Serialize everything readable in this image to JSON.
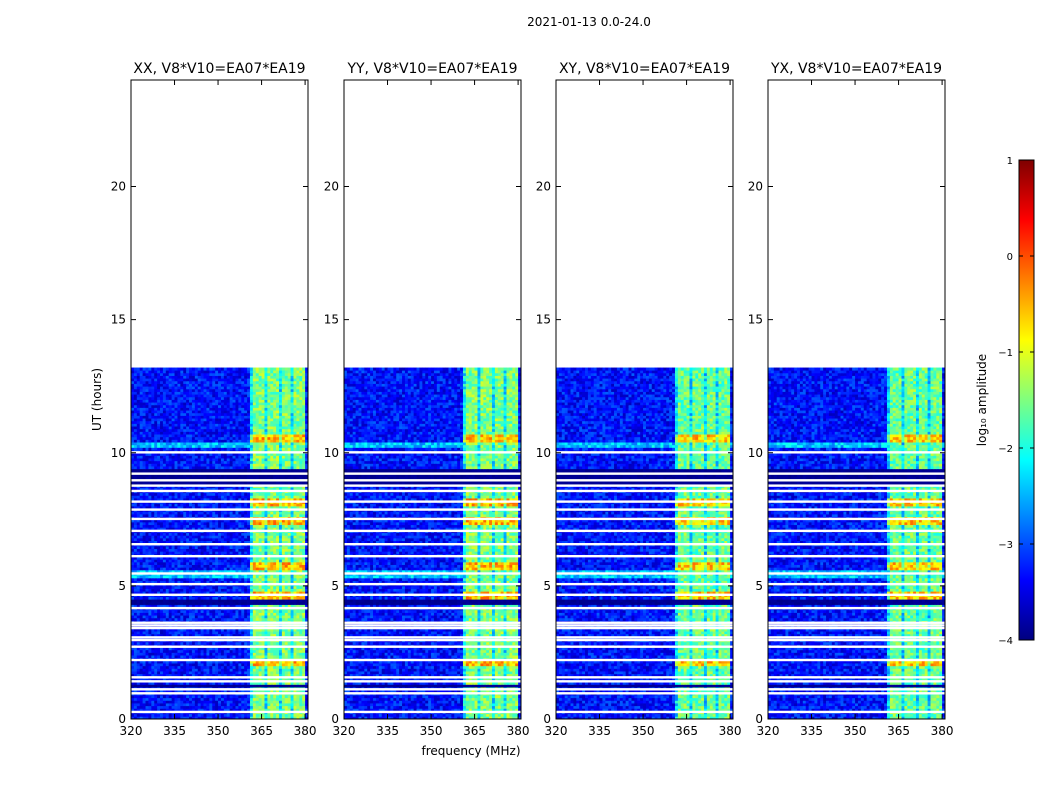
{
  "figure_title": "2021-01-13 0.0-24.0",
  "colorbar": {
    "label": "log₁₀ amplitude",
    "range": [
      -4,
      1
    ],
    "ticks": [
      "1",
      "0",
      "−1",
      "−2",
      "−3",
      "−4"
    ],
    "tick_values": [
      1,
      0,
      -1,
      -2,
      -3,
      -4
    ],
    "colormap": "jet",
    "colors": [
      "#00007f",
      "#0000ff",
      "#007fff",
      "#00ffff",
      "#7fff7f",
      "#ffff00",
      "#ff7f00",
      "#ff0000",
      "#7f0000"
    ]
  },
  "chart_data": [
    {
      "type": "heatmap",
      "title": "XX, V8*V10=EA07*EA19",
      "xlabel": "",
      "ylabel": "UT (hours)",
      "xlim": [
        320,
        381
      ],
      "ylim": [
        0,
        24
      ],
      "xticks": [
        320,
        335,
        350,
        365,
        380
      ],
      "yticks": [
        0,
        5,
        10,
        15,
        20
      ],
      "data_time_range_hours": [
        0.0,
        13.2
      ],
      "rfi_band_mhz": [
        361,
        380
      ],
      "background_log10_amplitude": -3.3,
      "rfi_band_log10_amplitude": -1.5
    },
    {
      "type": "heatmap",
      "title": "YY, V8*V10=EA07*EA19",
      "xlabel": "frequency (MHz)",
      "ylabel": "",
      "xlim": [
        320,
        381
      ],
      "ylim": [
        0,
        24
      ],
      "xticks": [
        320,
        335,
        350,
        365,
        380
      ],
      "yticks": [
        0,
        5,
        10,
        15,
        20
      ],
      "data_time_range_hours": [
        0.0,
        13.2
      ],
      "rfi_band_mhz": [
        361,
        380
      ],
      "background_log10_amplitude": -3.3,
      "rfi_band_log10_amplitude": -1.5
    },
    {
      "type": "heatmap",
      "title": "XY, V8*V10=EA07*EA19",
      "xlabel": "",
      "ylabel": "",
      "xlim": [
        320,
        381
      ],
      "ylim": [
        0,
        24
      ],
      "xticks": [
        320,
        335,
        350,
        365,
        380
      ],
      "yticks": [
        0,
        5,
        10,
        15,
        20
      ],
      "data_time_range_hours": [
        0.0,
        13.2
      ],
      "rfi_band_mhz": [
        361,
        380
      ],
      "background_log10_amplitude": -3.3,
      "rfi_band_log10_amplitude": -1.6
    },
    {
      "type": "heatmap",
      "title": "YX, V8*V10=EA07*EA19",
      "xlabel": "",
      "ylabel": "",
      "xlim": [
        320,
        381
      ],
      "ylim": [
        0,
        24
      ],
      "xticks": [
        320,
        335,
        350,
        365,
        380
      ],
      "yticks": [
        0,
        5,
        10,
        15,
        20
      ],
      "data_time_range_hours": [
        0.0,
        13.2
      ],
      "rfi_band_mhz": [
        361,
        380
      ],
      "background_log10_amplitude": -3.3,
      "rfi_band_log10_amplitude": -1.6
    }
  ]
}
